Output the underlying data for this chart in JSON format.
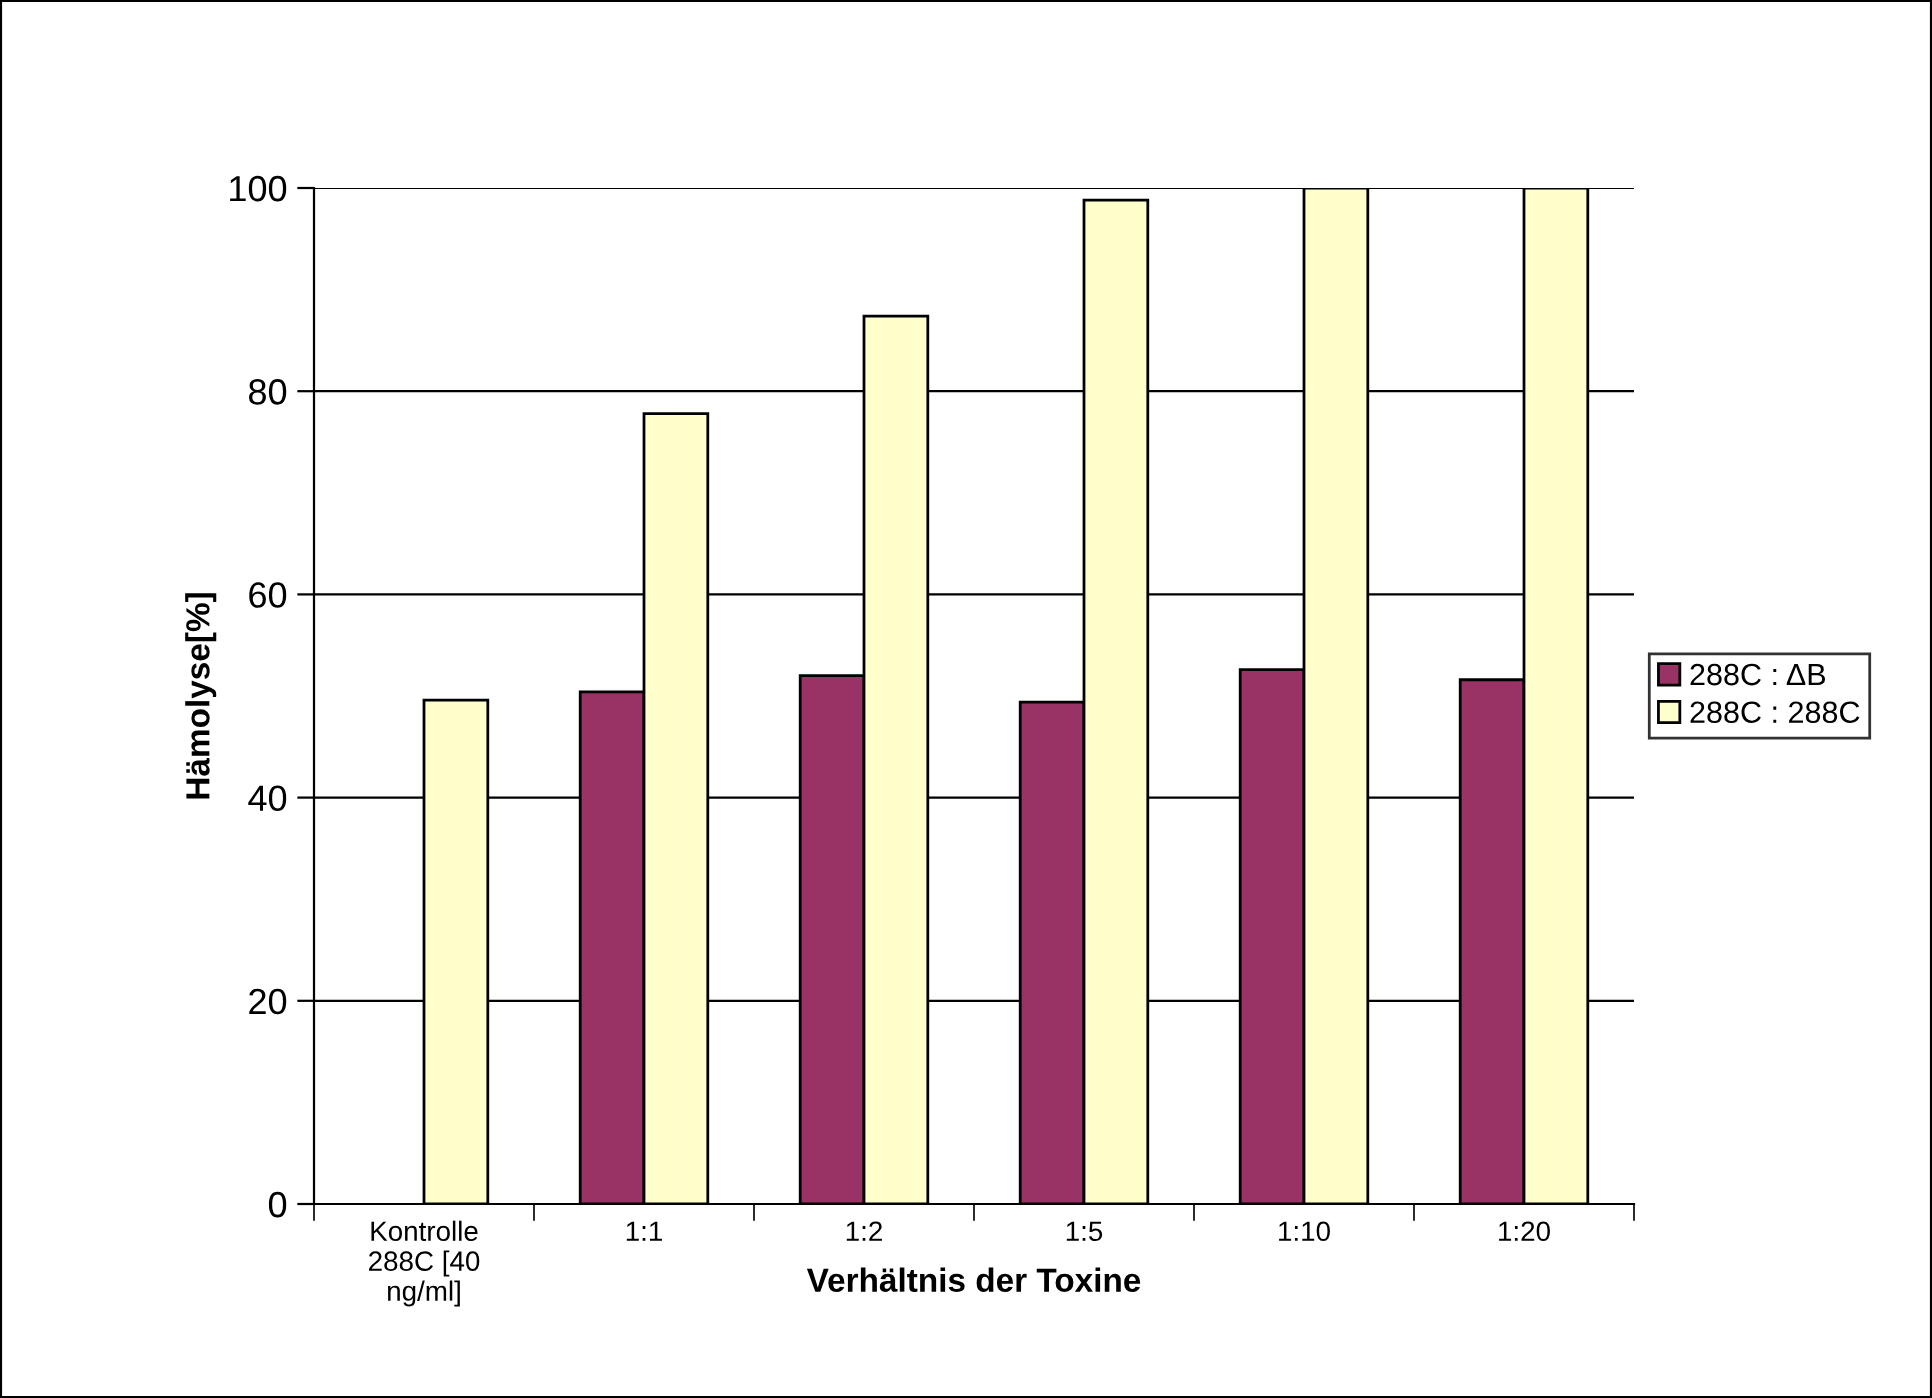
{
  "chart_data": {
    "type": "bar",
    "xlabel": "Verhältnis der Toxine",
    "ylabel": "Hämolyse[%]",
    "categories": [
      "Kontrolle\n288C [40\nng/ml]",
      "1:1",
      "1:2",
      "1:5",
      "1:10",
      "1:20"
    ],
    "series": [
      {
        "name": "288C : ΔB",
        "color": "#993366",
        "values": [
          null,
          50.4,
          52.0,
          49.4,
          52.6,
          51.6
        ]
      },
      {
        "name": "288C : 288C",
        "color": "#ffffcc",
        "values": [
          49.6,
          77.8,
          87.4,
          98.8,
          100,
          100
        ]
      }
    ],
    "ylim": [
      0,
      100
    ],
    "yticks": [
      0,
      20,
      40,
      60,
      80,
      100
    ],
    "grid": "y",
    "legend": "right"
  }
}
